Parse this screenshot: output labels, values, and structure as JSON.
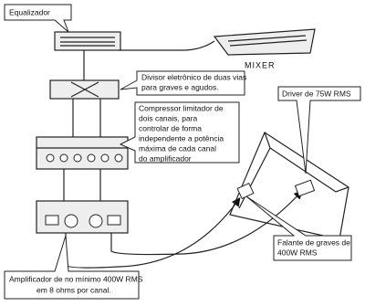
{
  "equalizer": {
    "label": "Equalizador"
  },
  "mixer": {
    "label": "MIXER"
  },
  "crossover": {
    "lines": [
      "Divisor eletrônico de duas vias",
      "para graves e agudos."
    ]
  },
  "compressor": {
    "lines": [
      "Compressor limitador de",
      "dois canais, para",
      "controlar de forma",
      "independente a potência",
      "máxima de cada canal",
      "do amplificador"
    ]
  },
  "driver": {
    "label": "Driver de 75W RMS"
  },
  "woofer": {
    "lines": [
      "Falante de graves de",
      "400W RMS"
    ]
  },
  "amplifier": {
    "lines": [
      "Amplificador de no mínimo 400W RMS",
      "em 8 ohms por canal."
    ]
  }
}
